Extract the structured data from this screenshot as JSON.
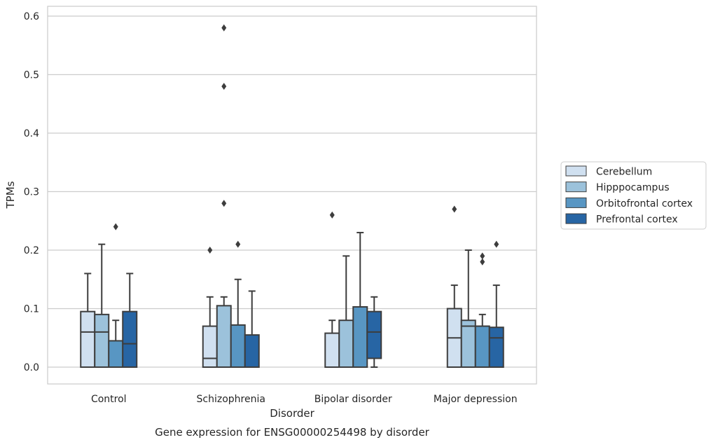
{
  "chart_data": {
    "type": "box",
    "title": "Gene expression for ENSG00000254498 by disorder",
    "xlabel": "Disorder",
    "ylabel": "TPMs",
    "ylim": [
      -0.03,
      0.61
    ],
    "yticks": [
      "0.0",
      "0.1",
      "0.2",
      "0.3",
      "0.4",
      "0.5",
      "0.6"
    ],
    "categories": [
      "Control",
      "Schizophrenia",
      "Bipolar disorder",
      "Major depression"
    ],
    "grid": "horizontal",
    "legend_position": "right",
    "series": [
      {
        "name": "Cerebellum",
        "color": "#d0e0f0",
        "boxes": [
          {
            "whislo": 0.0,
            "q1": 0.0,
            "med": 0.06,
            "q3": 0.095,
            "whishi": 0.16,
            "fliers": []
          },
          {
            "whislo": 0.0,
            "q1": 0.0,
            "med": 0.015,
            "q3": 0.07,
            "whishi": 0.12,
            "fliers": [
              0.2
            ]
          },
          {
            "whislo": 0.0,
            "q1": 0.0,
            "med": 0.0,
            "q3": 0.058,
            "whishi": 0.08,
            "fliers": [
              0.26
            ]
          },
          {
            "whislo": 0.0,
            "q1": 0.0,
            "med": 0.05,
            "q3": 0.1,
            "whishi": 0.14,
            "fliers": [
              0.27
            ]
          }
        ]
      },
      {
        "name": "Hipppocampus",
        "color": "#9cc2db",
        "boxes": [
          {
            "whislo": 0.0,
            "q1": 0.0,
            "med": 0.06,
            "q3": 0.09,
            "whishi": 0.21,
            "fliers": []
          },
          {
            "whislo": 0.0,
            "q1": 0.0,
            "med": 0.0,
            "q3": 0.105,
            "whishi": 0.12,
            "fliers": [
              0.28,
              0.48,
              0.58
            ]
          },
          {
            "whislo": 0.0,
            "q1": 0.0,
            "med": 0.0,
            "q3": 0.08,
            "whishi": 0.19,
            "fliers": []
          },
          {
            "whislo": 0.0,
            "q1": 0.0,
            "med": 0.07,
            "q3": 0.08,
            "whishi": 0.2,
            "fliers": []
          }
        ]
      },
      {
        "name": "Orbitofrontal cortex",
        "color": "#5896c3",
        "boxes": [
          {
            "whislo": 0.0,
            "q1": 0.0,
            "med": 0.0,
            "q3": 0.045,
            "whishi": 0.08,
            "fliers": [
              0.24
            ]
          },
          {
            "whislo": 0.0,
            "q1": 0.0,
            "med": 0.0,
            "q3": 0.072,
            "whishi": 0.15,
            "fliers": [
              0.21
            ]
          },
          {
            "whislo": 0.0,
            "q1": 0.0,
            "med": 0.0,
            "q3": 0.103,
            "whishi": 0.23,
            "fliers": []
          },
          {
            "whislo": 0.0,
            "q1": 0.0,
            "med": 0.07,
            "q3": 0.07,
            "whishi": 0.09,
            "fliers": [
              0.18,
              0.19
            ]
          }
        ]
      },
      {
        "name": "Prefrontal cortex",
        "color": "#2765a4",
        "boxes": [
          {
            "whislo": 0.0,
            "q1": 0.0,
            "med": 0.04,
            "q3": 0.095,
            "whishi": 0.16,
            "fliers": []
          },
          {
            "whislo": 0.0,
            "q1": 0.0,
            "med": 0.0,
            "q3": 0.055,
            "whishi": 0.13,
            "fliers": []
          },
          {
            "whislo": 0.0,
            "q1": 0.015,
            "med": 0.06,
            "q3": 0.095,
            "whishi": 0.12,
            "fliers": []
          },
          {
            "whislo": 0.0,
            "q1": 0.0,
            "med": 0.05,
            "q3": 0.068,
            "whishi": 0.14,
            "fliers": [
              0.21
            ]
          }
        ]
      }
    ]
  }
}
